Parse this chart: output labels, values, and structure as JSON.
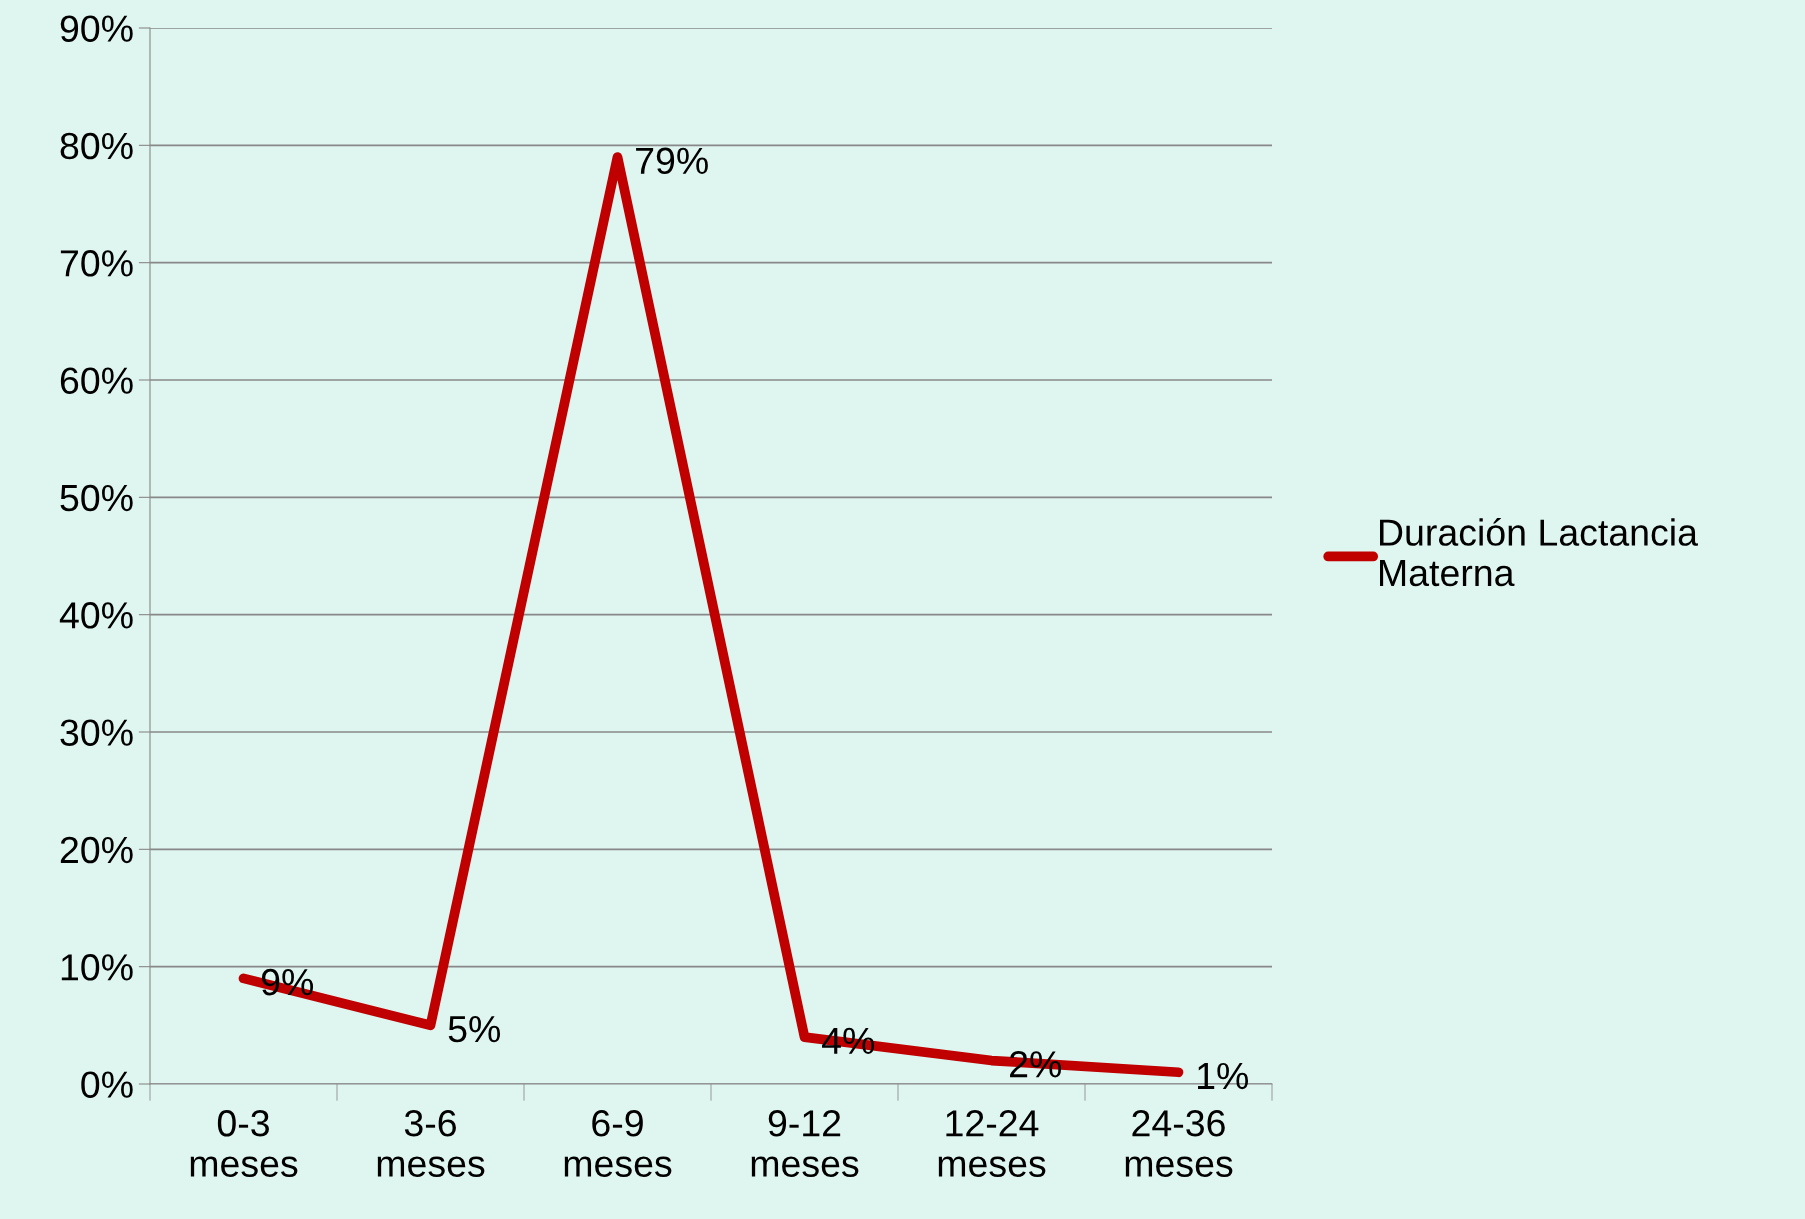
{
  "chart_data": {
    "type": "line",
    "categories": [
      "0-3\nmeses",
      "3-6\nmeses",
      "6-9\nmeses",
      "9-12\nmeses",
      "12-24\nmeses",
      "24-36\nmeses"
    ],
    "series": [
      {
        "name": "Duración Lactancia\nMaterna",
        "color": "#c00000",
        "values": [
          9,
          5,
          79,
          4,
          2,
          1
        ],
        "value_labels": [
          "9%",
          "5%",
          "79%",
          "4%",
          "2%",
          "1%"
        ]
      }
    ],
    "ylim": [
      0,
      90
    ],
    "yticks": [
      {
        "value": 0,
        "label": "0%"
      },
      {
        "value": 10,
        "label": "10%"
      },
      {
        "value": 20,
        "label": "20%"
      },
      {
        "value": 30,
        "label": "30%"
      },
      {
        "value": 40,
        "label": "40%"
      },
      {
        "value": 50,
        "label": "50%"
      },
      {
        "value": 60,
        "label": "60%"
      },
      {
        "value": 70,
        "label": "70%"
      },
      {
        "value": 80,
        "label": "80%"
      },
      {
        "value": 90,
        "label": "90%"
      }
    ],
    "grid": "y",
    "legend": "right",
    "marker": "none",
    "line_style": "solid"
  }
}
